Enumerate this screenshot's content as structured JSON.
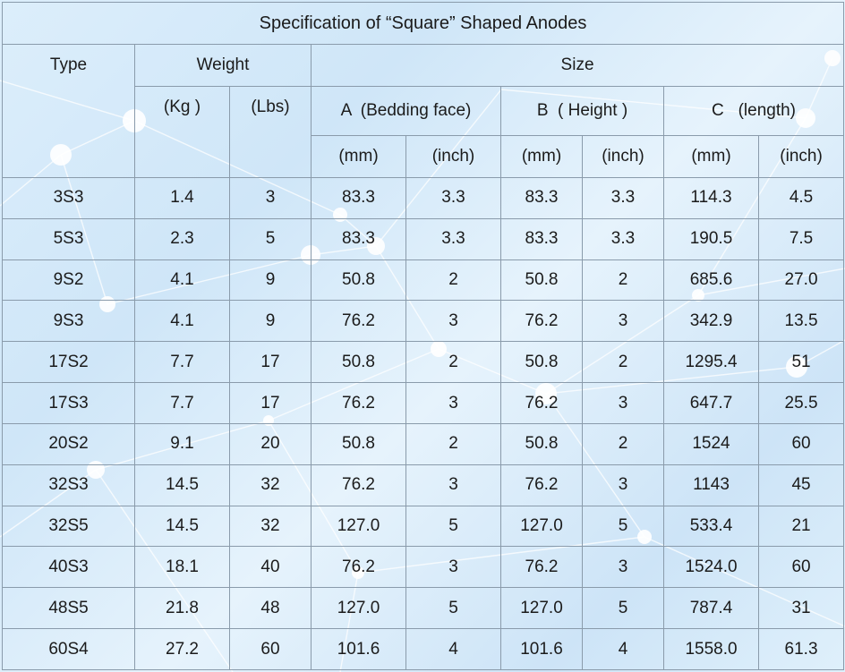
{
  "title": "Specification of “Square” Shaped Anodes",
  "headers": {
    "type": "Type",
    "weight": "Weight",
    "size": "Size",
    "kg": "(Kg )",
    "lbs": "(Lbs)",
    "a": "A  (Bedding face)",
    "b": "B  ( Height )",
    "c": "C   (length)",
    "mm": "(mm)",
    "inch": "(inch)"
  },
  "rows": [
    [
      "3S3",
      "1.4",
      "3",
      "83.3",
      "3.3",
      "83.3",
      "3.3",
      "114.3",
      "4.5"
    ],
    [
      "5S3",
      "2.3",
      "5",
      "83.3",
      "3.3",
      "83.3",
      "3.3",
      "190.5",
      "7.5"
    ],
    [
      "9S2",
      "4.1",
      "9",
      "50.8",
      "2",
      "50.8",
      "2",
      "685.6",
      "27.0"
    ],
    [
      "9S3",
      "4.1",
      "9",
      "76.2",
      "3",
      "76.2",
      "3",
      "342.9",
      "13.5"
    ],
    [
      "17S2",
      "7.7",
      "17",
      "50.8",
      "2",
      "50.8",
      "2",
      "1295.4",
      "51"
    ],
    [
      "17S3",
      "7.7",
      "17",
      "76.2",
      "3",
      "76.2",
      "3",
      "647.7",
      "25.5"
    ],
    [
      "20S2",
      "9.1",
      "20",
      "50.8",
      "2",
      "50.8",
      "2",
      "1524",
      "60"
    ],
    [
      "32S3",
      "14.5",
      "32",
      "76.2",
      "3",
      "76.2",
      "3",
      "1143",
      "45"
    ],
    [
      "32S5",
      "14.5",
      "32",
      "127.0",
      "5",
      "127.0",
      "5",
      "533.4",
      "21"
    ],
    [
      "40S3",
      "18.1",
      "40",
      "76.2",
      "3",
      "76.2",
      "3",
      "1524.0",
      "60"
    ],
    [
      "48S5",
      "21.8",
      "48",
      "127.0",
      "5",
      "127.0",
      "5",
      "787.4",
      "31"
    ],
    [
      "60S4",
      "27.2",
      "60",
      "101.6",
      "4",
      "101.6",
      "4",
      "1558.0",
      "61.3"
    ]
  ]
}
